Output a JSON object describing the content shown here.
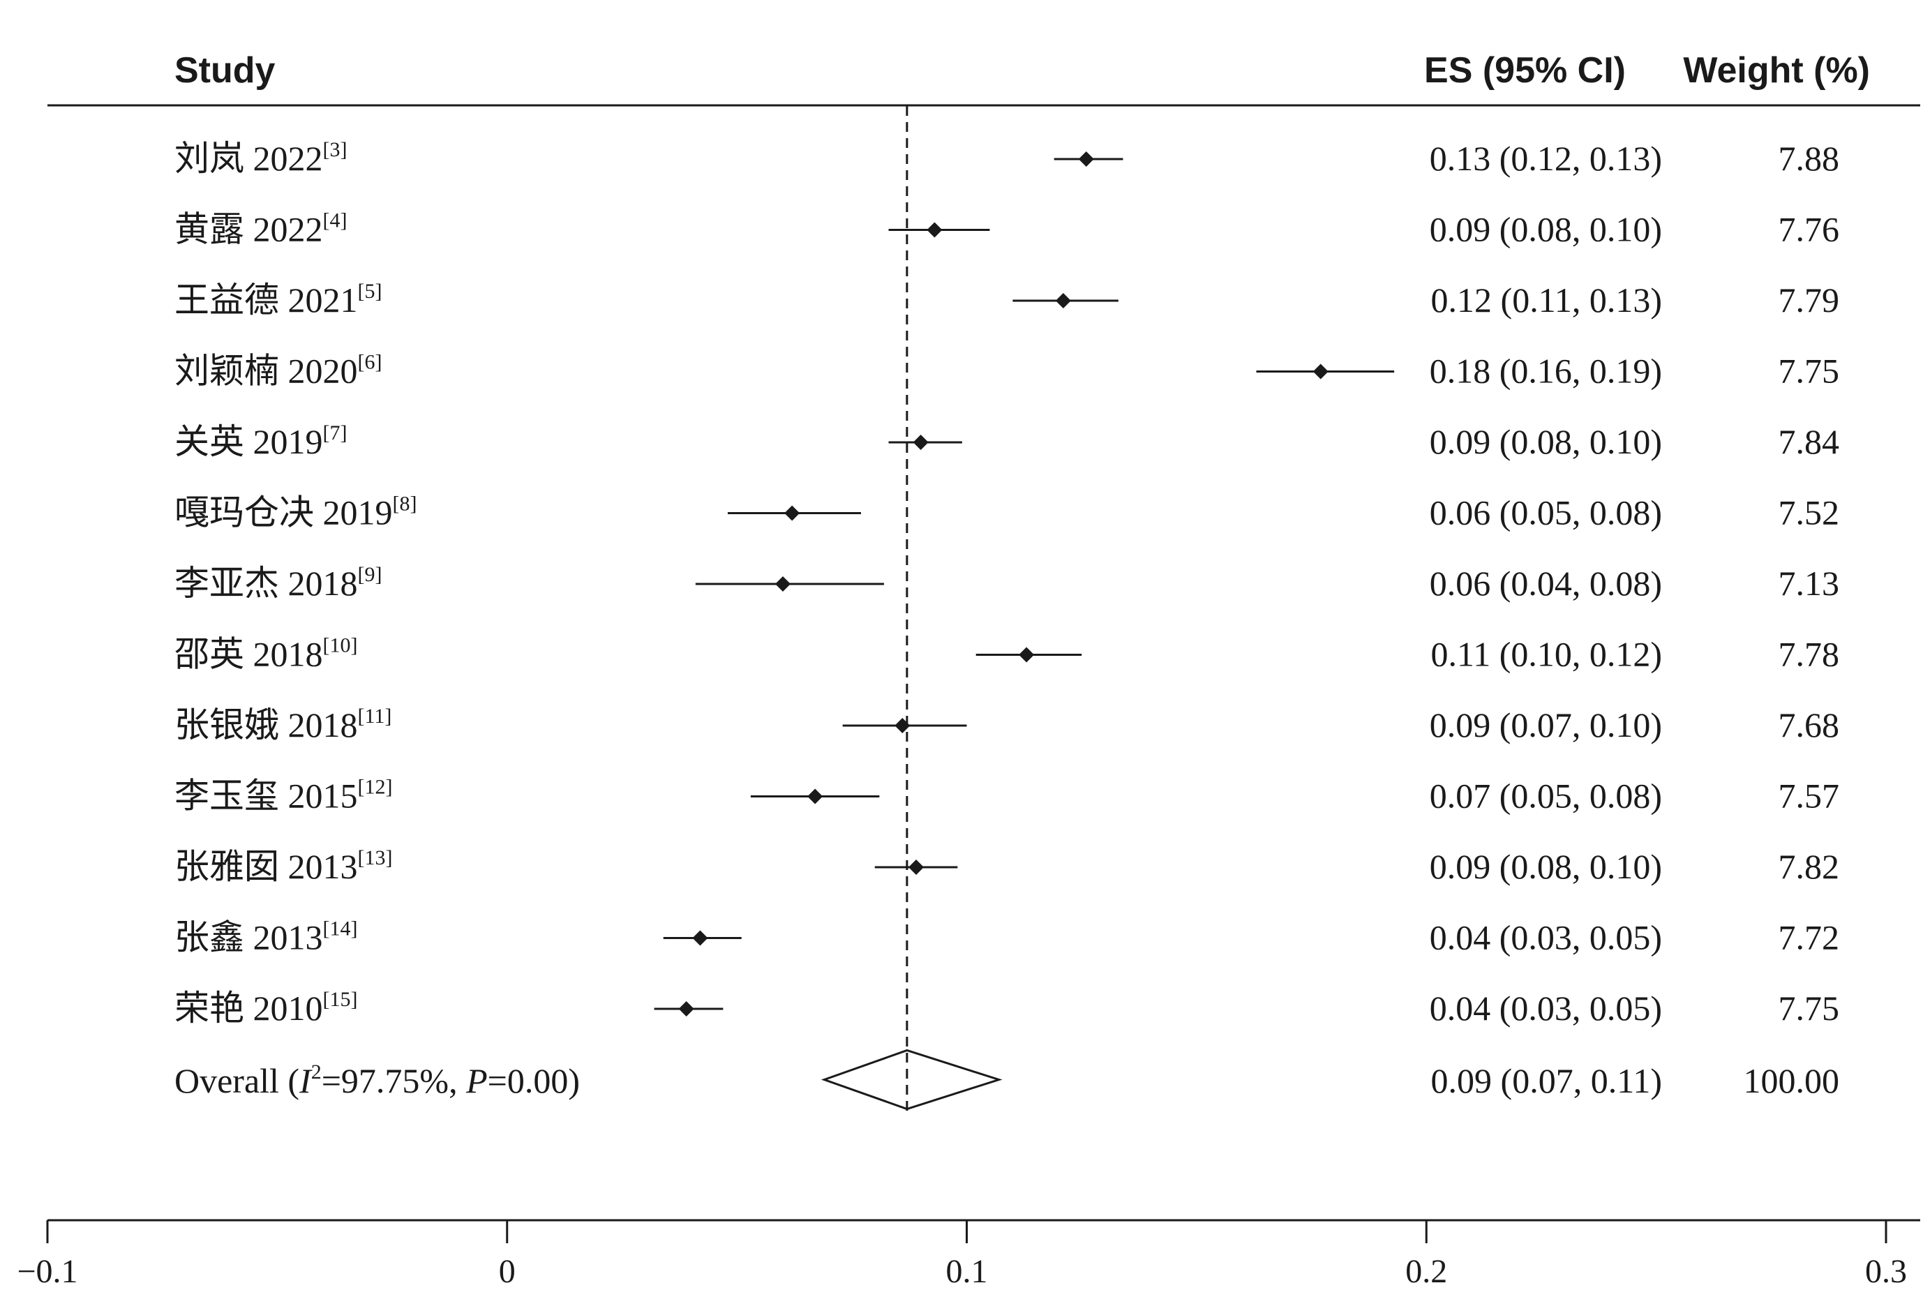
{
  "chart_data": {
    "type": "forest",
    "headers": {
      "study": "Study",
      "es": "ES (95% CI)",
      "weight": "Weight (%)"
    },
    "studies": [
      {
        "name": "刘岚 2022",
        "ref": "[3]",
        "es": 0.126,
        "lo": 0.119,
        "hi": 0.134,
        "es_text": "0.13 (0.12, 0.13)",
        "weight": "7.88"
      },
      {
        "name": "黄露 2022",
        "ref": "[4]",
        "es": 0.093,
        "lo": 0.083,
        "hi": 0.105,
        "es_text": "0.09 (0.08, 0.10)",
        "weight": "7.76"
      },
      {
        "name": "王益德 2021",
        "ref": "[5]",
        "es": 0.121,
        "lo": 0.11,
        "hi": 0.133,
        "es_text": "0.12 (0.11, 0.13)",
        "weight": "7.79"
      },
      {
        "name": "刘颖楠 2020",
        "ref": "[6]",
        "es": 0.177,
        "lo": 0.163,
        "hi": 0.193,
        "es_text": "0.18 (0.16, 0.19)",
        "weight": "7.75"
      },
      {
        "name": "关英 2019",
        "ref": "[7]",
        "es": 0.09,
        "lo": 0.083,
        "hi": 0.099,
        "es_text": "0.09 (0.08, 0.10)",
        "weight": "7.84"
      },
      {
        "name": "嘎玛仓决 2019",
        "ref": "[8]",
        "es": 0.062,
        "lo": 0.048,
        "hi": 0.077,
        "es_text": "0.06 (0.05, 0.08)",
        "weight": "7.52"
      },
      {
        "name": "李亚杰 2018",
        "ref": "[9]",
        "es": 0.06,
        "lo": 0.041,
        "hi": 0.082,
        "es_text": "0.06 (0.04, 0.08)",
        "weight": "7.13"
      },
      {
        "name": "邵英 2018",
        "ref": "[10]",
        "es": 0.113,
        "lo": 0.102,
        "hi": 0.125,
        "es_text": "0.11 (0.10, 0.12)",
        "weight": "7.78"
      },
      {
        "name": "张银娥 2018",
        "ref": "[11]",
        "es": 0.086,
        "lo": 0.073,
        "hi": 0.1,
        "es_text": "0.09 (0.07, 0.10)",
        "weight": "7.68"
      },
      {
        "name": "李玉玺 2015",
        "ref": "[12]",
        "es": 0.067,
        "lo": 0.053,
        "hi": 0.081,
        "es_text": "0.07 (0.05, 0.08)",
        "weight": "7.57"
      },
      {
        "name": "张雅囡 2013",
        "ref": "[13]",
        "es": 0.089,
        "lo": 0.08,
        "hi": 0.098,
        "es_text": "0.09 (0.08, 0.10)",
        "weight": "7.82"
      },
      {
        "name": "张鑫 2013",
        "ref": "[14]",
        "es": 0.042,
        "lo": 0.034,
        "hi": 0.051,
        "es_text": "0.04 (0.03, 0.05)",
        "weight": "7.72"
      },
      {
        "name": "荣艳 2010",
        "ref": "[15]",
        "es": 0.039,
        "lo": 0.032,
        "hi": 0.047,
        "es_text": "0.04 (0.03, 0.05)",
        "weight": "7.75"
      }
    ],
    "overall": {
      "label_prefix": "Overall (",
      "i2_symbol": "I",
      "i2_exp": "2",
      "i2_value": "=97.75%, ",
      "p_symbol": "P",
      "p_value": "=0.00)",
      "es": 0.087,
      "lo": 0.069,
      "hi": 0.107,
      "es_text": "0.09 (0.07, 0.11)",
      "weight": "100.00"
    },
    "null_line": 0.087,
    "xlim": [
      -0.1,
      0.3
    ],
    "x_ticks": [
      -0.1,
      0,
      0.1,
      0.2,
      0.3
    ],
    "x_tick_labels": [
      "−0.1",
      "0",
      "0.1",
      "0.2",
      "0.3"
    ],
    "colors": {
      "marker": "#1a1a1a",
      "line": "#1a1a1a"
    }
  }
}
